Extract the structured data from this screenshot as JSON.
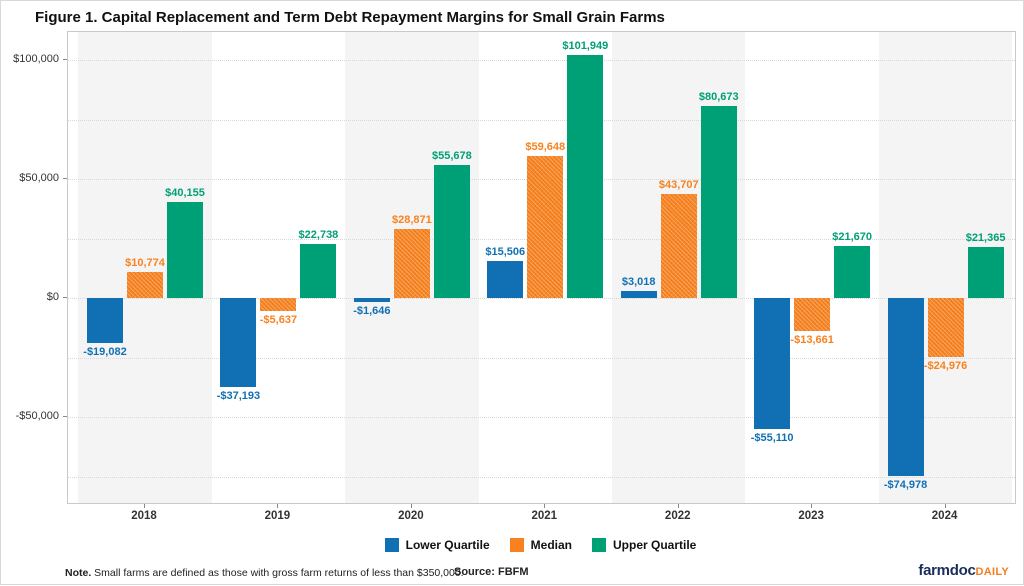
{
  "title": "Figure 1. Capital Replacement and Term Debt Repayment Margins for Small Grain Farms",
  "chart_data": {
    "type": "bar",
    "title": "Figure 1. Capital Replacement and Term Debt Repayment Margins for Small Grain Farms",
    "categories": [
      "2018",
      "2019",
      "2020",
      "2021",
      "2022",
      "2023",
      "2024"
    ],
    "series": [
      {
        "name": "Lower Quartile",
        "color": "#1170b4",
        "hatch": false,
        "values": [
          -19082,
          -37193,
          -1646,
          15506,
          3018,
          -55110,
          -74978
        ]
      },
      {
        "name": "Median",
        "color": "#f8821f",
        "hatch": true,
        "values": [
          10774,
          -5637,
          28871,
          59648,
          43707,
          -13661,
          -24976
        ]
      },
      {
        "name": "Upper Quartile",
        "color": "#00a077",
        "hatch": false,
        "values": [
          40155,
          22738,
          55678,
          101949,
          80673,
          21670,
          21365
        ]
      }
    ],
    "xlabel": "",
    "ylabel": "",
    "ylim": [
      -86000,
      112000
    ],
    "y_axis_ticks": [
      {
        "value": 100000,
        "label": "$100,000"
      },
      {
        "value": 50000,
        "label": "$50,000"
      },
      {
        "value": 0,
        "label": "$0"
      },
      {
        "value": -50000,
        "label": "-$50,000"
      }
    ],
    "grid_interval": 25000,
    "grid_style": "dotted",
    "band_fill": "#f4f4f4",
    "legend_position": "bottom",
    "value_labels": true
  },
  "footer": {
    "note_label": "Note.",
    "note_text": " Small farms are defined as those with gross farm returns of less than $350,000.",
    "source": "Source: FBFM"
  },
  "logo": {
    "name": "farmdoc",
    "suffix": "DAILY"
  }
}
